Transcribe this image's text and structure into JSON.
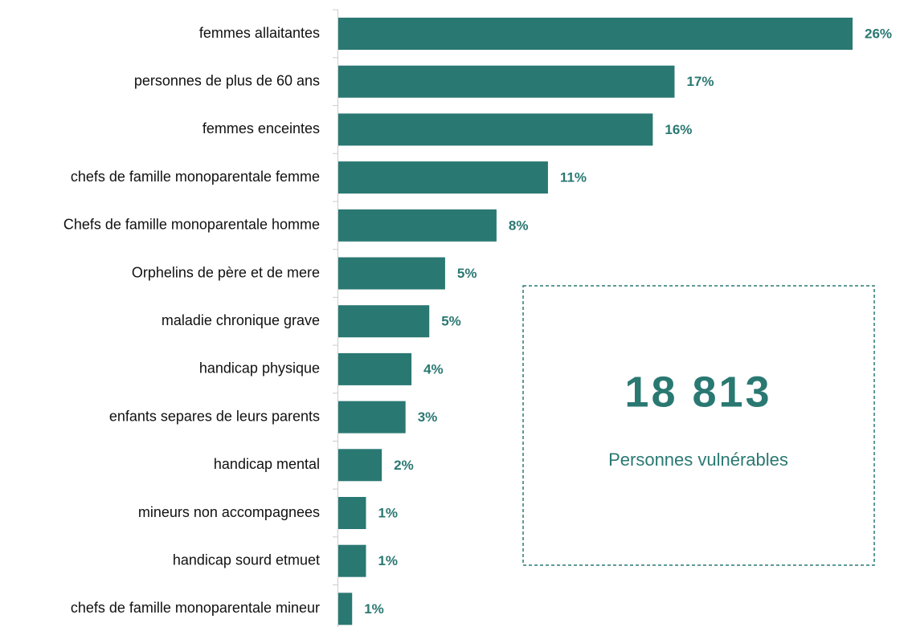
{
  "chart_data": {
    "type": "bar",
    "orientation": "horizontal",
    "categories": [
      "femmes allaitantes",
      "personnes de plus de 60 ans",
      "femmes enceintes",
      "chefs de famille monoparentale femme",
      "Chefs de famille monoparentale homme",
      "Orphelins de père et de mere",
      "maladie chronique grave",
      "handicap physique",
      "enfants separes de leurs parents",
      "handicap mental",
      "mineurs non accompagnees",
      "handicap sourd etmuet",
      "chefs de famille monoparentale mineur"
    ],
    "values": [
      26,
      17,
      15.9,
      10.6,
      8,
      5.4,
      4.6,
      3.7,
      3.4,
      2.2,
      1.4,
      1.4,
      0.7
    ],
    "value_labels": [
      "26%",
      "17%",
      "16%",
      "11%",
      "8%",
      "5%",
      "5%",
      "4%",
      "3%",
      "2%",
      "1%",
      "1%",
      "1%"
    ],
    "color": "#2a7872",
    "annotation": {
      "value": "18 813",
      "label": "Personnes vulnérables"
    }
  }
}
